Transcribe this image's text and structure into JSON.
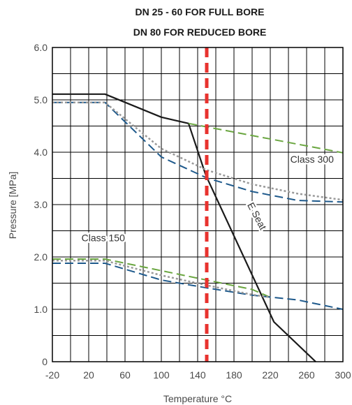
{
  "chart_data": {
    "type": "line",
    "title_lines": [
      "DN 25 - 60 FOR FULL BORE",
      "DN 80 FOR REDUCED BORE"
    ],
    "xlabel": "Temperature °C",
    "ylabel": "Pressure [MPa]",
    "xlim": [
      -20,
      300
    ],
    "ylim": [
      0,
      6.0
    ],
    "x_ticks": [
      -20,
      20,
      60,
      100,
      140,
      180,
      220,
      260,
      300
    ],
    "x_tick_labels": [
      "-20",
      "20",
      "60",
      "100",
      "140",
      "180",
      "220",
      "260",
      "300"
    ],
    "y_ticks": [
      0,
      1.0,
      2.0,
      3.0,
      4.0,
      5.0,
      6.0
    ],
    "y_tick_labels": [
      "0",
      "1.0",
      "2.0",
      "3.0",
      "4.0",
      "5.0",
      "6.0"
    ],
    "grid": true,
    "grid_x_step": 20,
    "grid_y_step": 0.5,
    "series": [
      {
        "name": "E Seat",
        "color": "#1a1a1a",
        "style": "solid",
        "x": [
          -20,
          38,
          100,
          130,
          149,
          224,
          270
        ],
        "y": [
          5.11,
          5.11,
          4.67,
          4.55,
          3.56,
          0.76,
          0
        ]
      },
      {
        "color": "#6aa640",
        "style": "dashed",
        "x": [
          130,
          300
        ],
        "y": [
          4.55,
          3.99
        ]
      },
      {
        "color": "#1f5a8c",
        "style": "dashed",
        "x": [
          -20,
          38,
          100,
          150,
          200,
          250,
          300
        ],
        "y": [
          4.95,
          4.95,
          3.91,
          3.51,
          3.25,
          3.08,
          3.05
        ]
      },
      {
        "color": "#999999",
        "style": "dotted",
        "x": [
          -20,
          38,
          100,
          150,
          200,
          250,
          300
        ],
        "y": [
          4.95,
          4.95,
          4.07,
          3.66,
          3.39,
          3.21,
          3.09
        ]
      },
      {
        "color": "#6aa640",
        "style": "dashed",
        "x": [
          -20,
          38,
          200,
          220
        ],
        "y": [
          1.96,
          1.96,
          1.38,
          1.23
        ]
      },
      {
        "color": "#1f5a8c",
        "style": "dashed",
        "x": [
          -20,
          38,
          100,
          150,
          200,
          250,
          300
        ],
        "y": [
          1.88,
          1.88,
          1.56,
          1.41,
          1.27,
          1.18,
          1.0
        ]
      },
      {
        "color": "#999999",
        "style": "dotted",
        "x": [
          -20,
          38,
          100,
          150,
          200,
          220
        ],
        "y": [
          1.93,
          1.93,
          1.65,
          1.46,
          1.28,
          1.23
        ]
      }
    ],
    "reference_lines": [
      {
        "x": 150,
        "color": "#e8322e",
        "style": "dashed"
      }
    ],
    "annotations": [
      {
        "text": "Class 300",
        "x": 242,
        "y": 3.8
      },
      {
        "text": "Class 150",
        "x": 12,
        "y": 2.3
      },
      {
        "text": "E Seat",
        "x": 202,
        "y": 2.75,
        "rotate": 62
      }
    ]
  }
}
